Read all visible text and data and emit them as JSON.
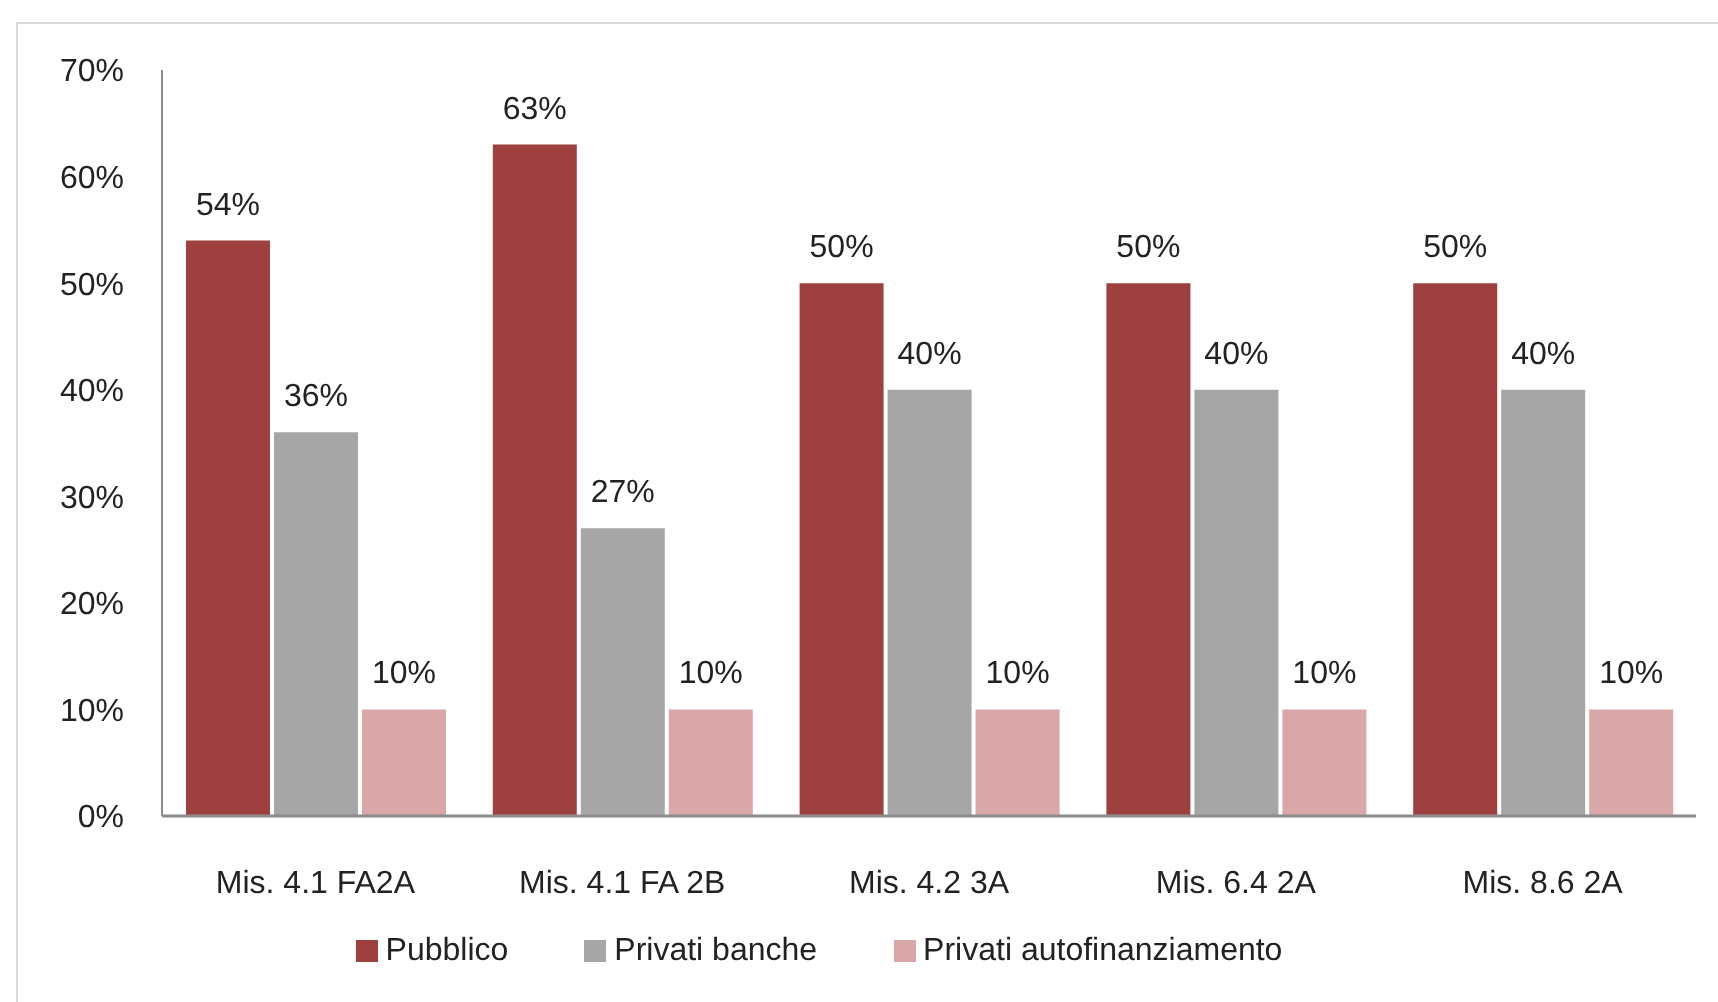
{
  "chart_data": {
    "type": "bar",
    "categories": [
      "Mis. 4.1 FA2A",
      "Mis. 4.1 FA 2B",
      "Mis. 4.2 3A",
      "Mis. 6.4 2A",
      "Mis. 8.6 2A"
    ],
    "series": [
      {
        "name": "Pubblico",
        "color": "#9e4040",
        "values": [
          54,
          63,
          50,
          50,
          50
        ],
        "value_labels": [
          "54%",
          "63%",
          "50%",
          "50%",
          "50%"
        ]
      },
      {
        "name": "Privati banche",
        "color": "#a6a6a6",
        "values": [
          36,
          27,
          40,
          40,
          40
        ],
        "value_labels": [
          "36%",
          "27%",
          "40%",
          "40%",
          "40%"
        ]
      },
      {
        "name": "Privati autofinanziamento",
        "color": "#d9a7a7",
        "values": [
          10,
          10,
          10,
          10,
          10
        ],
        "value_labels": [
          "10%",
          "10%",
          "10%",
          "10%",
          "10%"
        ]
      }
    ],
    "ylim": [
      0,
      70
    ],
    "yticks": [
      {
        "value": 0,
        "label": "0%"
      },
      {
        "value": 10,
        "label": "10%"
      },
      {
        "value": 20,
        "label": "20%"
      },
      {
        "value": 30,
        "label": "30%"
      },
      {
        "value": 40,
        "label": "40%"
      },
      {
        "value": 50,
        "label": "50%"
      },
      {
        "value": 60,
        "label": "60%"
      },
      {
        "value": 70,
        "label": "70%"
      }
    ],
    "grid": false,
    "legend": "bottom"
  }
}
